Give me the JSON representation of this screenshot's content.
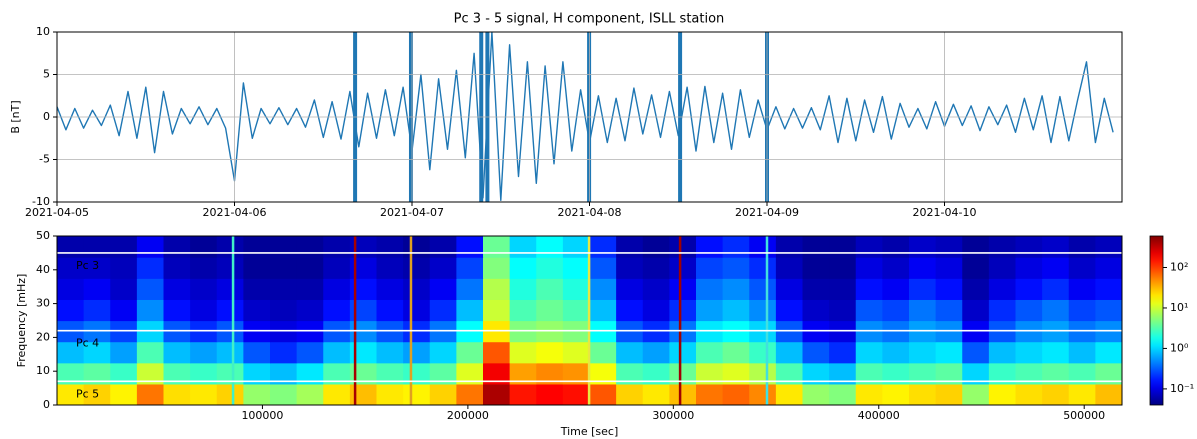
{
  "chart_data": [
    {
      "type": "line",
      "title": "Pc 3 - 5 signal, H component, ISLL station",
      "ylabel": "B [nT]",
      "x": [
        0,
        4320,
        8640,
        12960,
        17280,
        21600,
        25920,
        30240,
        34560,
        38880,
        43200,
        47520,
        51840,
        56160,
        60480,
        64800,
        69120,
        73440,
        77760,
        82080,
        86400,
        90720,
        95040,
        99360,
        103680,
        108000,
        112320,
        116640,
        120960,
        125280,
        129600,
        133920,
        138240,
        142560,
        146880,
        151200,
        155520,
        159840,
        164160,
        168480,
        172800,
        177120,
        181440,
        185760,
        190080,
        194400,
        198720,
        203040,
        207360,
        211680,
        216000,
        220320,
        224640,
        228960,
        233280,
        237600,
        241920,
        246240,
        250560,
        254880,
        259200,
        263520,
        267840,
        272160,
        276480,
        280800,
        285120,
        289440,
        293760,
        298080,
        302400,
        306720,
        311040,
        315360,
        319680,
        324000,
        328320,
        332640,
        336960,
        341280,
        345600,
        349920,
        354240,
        358560,
        362880,
        367200,
        371520,
        375840,
        380160,
        384480,
        388800,
        393120,
        397440,
        401760,
        406080,
        410400,
        414720,
        419040,
        423360,
        427680,
        432000,
        436320,
        440640,
        444960,
        449280,
        453600,
        457920,
        462240,
        466560,
        470880,
        475200,
        479520,
        483840,
        488160,
        492480,
        496800,
        501120,
        505440,
        509760,
        514080
      ],
      "series": [
        {
          "color": "#1f77b4",
          "values": [
            1.2,
            -1.5,
            1.0,
            -1.3,
            0.8,
            -1.0,
            1.4,
            -2.2,
            3.0,
            -2.5,
            3.5,
            -4.2,
            3.0,
            -2.0,
            1.0,
            -0.8,
            1.2,
            -0.9,
            1.0,
            -1.3,
            -7.5,
            4.0,
            -2.5,
            1.0,
            -0.8,
            1.1,
            -0.9,
            1.0,
            -1.2,
            2.0,
            -2.4,
            1.8,
            -2.6,
            3.0,
            -3.5,
            2.8,
            -2.5,
            3.2,
            -2.2,
            3.5,
            -4.0,
            5.0,
            -6.2,
            4.5,
            -3.8,
            5.5,
            -4.8,
            7.5,
            -9.5,
            10.0,
            -9.8,
            8.5,
            -7.0,
            6.5,
            -7.8,
            6.0,
            -5.5,
            6.5,
            -4.0,
            3.2,
            -3.0,
            2.5,
            -3.0,
            2.2,
            -2.8,
            3.4,
            -2.0,
            2.6,
            -2.4,
            3.0,
            -2.2,
            3.5,
            -4.0,
            3.6,
            -3.0,
            2.8,
            -3.8,
            3.2,
            -2.4,
            2.0,
            -1.5,
            1.2,
            -1.4,
            1.0,
            -1.3,
            1.1,
            -1.5,
            2.5,
            -3.0,
            2.2,
            -2.8,
            2.0,
            -1.8,
            2.4,
            -2.6,
            1.6,
            -1.2,
            1.0,
            -1.4,
            1.8,
            -1.1,
            1.5,
            -1.0,
            1.3,
            -1.6,
            1.2,
            -0.9,
            1.4,
            -1.8,
            2.2,
            -1.5,
            2.5,
            -3.0,
            2.4,
            -2.8,
            2.0,
            6.5,
            -3.0,
            2.2,
            -1.8
          ]
        }
      ],
      "spikes": [
        {
          "x": 145100,
          "low": -10,
          "high": 10
        },
        {
          "x": 172300,
          "low": -10,
          "high": 10
        },
        {
          "x": 206500,
          "low": -10,
          "high": 10
        },
        {
          "x": 209500,
          "low": -10,
          "high": 10
        },
        {
          "x": 259000,
          "low": -10,
          "high": 10
        },
        {
          "x": 303300,
          "low": -10,
          "high": 10
        },
        {
          "x": 345600,
          "low": -10,
          "high": 10
        }
      ],
      "xlim": [
        0,
        518400
      ],
      "xticks": [
        {
          "value": 0,
          "label": "2021-04-05"
        },
        {
          "value": 86400,
          "label": "2021-04-06"
        },
        {
          "value": 172800,
          "label": "2021-04-07"
        },
        {
          "value": 259200,
          "label": "2021-04-08"
        },
        {
          "value": 345600,
          "label": "2021-04-09"
        },
        {
          "value": 432000,
          "label": "2021-04-10"
        }
      ],
      "ylim": [
        -10,
        10
      ],
      "yticks": [
        -10,
        -5,
        0,
        5,
        10
      ],
      "grid": true
    },
    {
      "type": "heatmap",
      "xlabel": "Time [sec]",
      "ylabel": "Frequency [mHz]",
      "x_edges": [
        0,
        12960,
        25920,
        38880,
        51840,
        64800,
        77760,
        90720,
        103680,
        116640,
        129600,
        142560,
        155520,
        168480,
        181440,
        194400,
        207360,
        220320,
        233280,
        246240,
        259200,
        272160,
        285120,
        298080,
        311040,
        324000,
        336960,
        349920,
        362880,
        375840,
        388800,
        401760,
        414720,
        427680,
        440640,
        453600,
        466560,
        479520,
        492480,
        505440,
        518400
      ],
      "y_edges": [
        0,
        6.25,
        12.5,
        18.75,
        25,
        31.25,
        37.5,
        43.75,
        50
      ],
      "values": [
        [
          20,
          25,
          18,
          60,
          22,
          20,
          25,
          6,
          5,
          7,
          20,
          30,
          20,
          18,
          25,
          60,
          400,
          150,
          180,
          160,
          80,
          25,
          20,
          30,
          60,
          70,
          50,
          20,
          6,
          5,
          20,
          18,
          22,
          25,
          6,
          18,
          22,
          25,
          20,
          30
        ],
        [
          3,
          3.5,
          2.5,
          10,
          3,
          2.5,
          3,
          1,
          0.8,
          1.2,
          3,
          4,
          3,
          2.5,
          3.5,
          12,
          200,
          40,
          50,
          45,
          15,
          3,
          2.5,
          4,
          10,
          12,
          8,
          3,
          1,
          0.8,
          3,
          2.5,
          3,
          3.5,
          1,
          2.5,
          3,
          3.5,
          3,
          4
        ],
        [
          0.8,
          1,
          0.6,
          3,
          0.8,
          0.6,
          0.8,
          0.3,
          0.2,
          0.3,
          0.8,
          1.2,
          0.8,
          0.6,
          1,
          4,
          80,
          12,
          15,
          12,
          4,
          0.8,
          0.6,
          1,
          3,
          4,
          2.5,
          0.8,
          0.3,
          0.2,
          1,
          0.8,
          1,
          1.2,
          0.3,
          0.8,
          1,
          1.2,
          0.8,
          1.2
        ],
        [
          0.3,
          0.4,
          0.25,
          1,
          0.3,
          0.2,
          0.3,
          0.12,
          0.1,
          0.12,
          0.3,
          0.5,
          0.3,
          0.2,
          0.4,
          1.5,
          20,
          5,
          6,
          5,
          1.5,
          0.3,
          0.2,
          0.4,
          1.2,
          1.5,
          1,
          0.3,
          0.12,
          0.1,
          0.5,
          0.4,
          0.6,
          0.5,
          0.12,
          0.3,
          0.5,
          0.6,
          0.4,
          0.5
        ],
        [
          0.15,
          0.2,
          0.12,
          0.5,
          0.15,
          0.1,
          0.15,
          0.08,
          0.07,
          0.08,
          0.15,
          0.25,
          0.15,
          0.1,
          0.2,
          0.8,
          10,
          3,
          4,
          3,
          0.8,
          0.15,
          0.1,
          0.2,
          0.6,
          0.8,
          0.5,
          0.15,
          0.08,
          0.07,
          0.3,
          0.25,
          0.4,
          0.3,
          0.08,
          0.2,
          0.3,
          0.4,
          0.25,
          0.3
        ],
        [
          0.1,
          0.12,
          0.08,
          0.3,
          0.1,
          0.08,
          0.1,
          0.06,
          0.06,
          0.06,
          0.1,
          0.15,
          0.1,
          0.08,
          0.12,
          0.4,
          8,
          2,
          3,
          2,
          0.5,
          0.1,
          0.08,
          0.12,
          0.4,
          0.5,
          0.3,
          0.1,
          0.06,
          0.06,
          0.15,
          0.12,
          0.2,
          0.15,
          0.06,
          0.1,
          0.15,
          0.2,
          0.12,
          0.15
        ],
        [
          0.08,
          0.08,
          0.07,
          0.2,
          0.07,
          0.06,
          0.07,
          0.05,
          0.05,
          0.05,
          0.07,
          0.1,
          0.07,
          0.06,
          0.08,
          0.25,
          5,
          1.5,
          2,
          1.5,
          0.3,
          0.07,
          0.06,
          0.08,
          0.25,
          0.3,
          0.2,
          0.07,
          0.05,
          0.05,
          0.1,
          0.08,
          0.12,
          0.1,
          0.05,
          0.07,
          0.1,
          0.12,
          0.08,
          0.1
        ],
        [
          0.06,
          0.06,
          0.06,
          0.12,
          0.06,
          0.05,
          0.06,
          0.05,
          0.05,
          0.05,
          0.06,
          0.07,
          0.06,
          0.05,
          0.06,
          0.15,
          4,
          1,
          1.5,
          1,
          0.2,
          0.06,
          0.05,
          0.06,
          0.15,
          0.2,
          0.12,
          0.06,
          0.05,
          0.05,
          0.07,
          0.06,
          0.08,
          0.07,
          0.05,
          0.06,
          0.07,
          0.08,
          0.06,
          0.07
        ]
      ],
      "lines": [
        {
          "x": 85700,
          "color": "#40f0c8"
        },
        {
          "x": 145100,
          "color": "#a80000"
        },
        {
          "x": 172300,
          "color": "#e0a020"
        },
        {
          "x": 259000,
          "color": "#e8e840"
        },
        {
          "x": 303300,
          "color": "#a00000"
        },
        {
          "x": 345600,
          "color": "#40e0e0"
        }
      ],
      "bands": [
        {
          "label": "Pc 3",
          "freq": 45
        },
        {
          "label": "Pc 4",
          "freq": 22
        },
        {
          "label": "Pc 5",
          "freq": 7
        }
      ],
      "band_color": "#ffffff",
      "colorbar": {
        "scale": "log",
        "colormap": "jet",
        "lim": [
          0.04,
          600
        ],
        "ticks": [
          {
            "value": 0.1,
            "label": "10⁻¹"
          },
          {
            "value": 1,
            "label": "10⁰"
          },
          {
            "value": 10,
            "label": "10¹"
          },
          {
            "value": 100,
            "label": "10²"
          }
        ]
      },
      "xlim": [
        0,
        518400
      ],
      "xticks": [
        100000,
        200000,
        300000,
        400000,
        500000
      ],
      "ylim": [
        0,
        50
      ],
      "yticks": [
        0,
        10,
        20,
        30,
        40,
        50
      ]
    }
  ]
}
